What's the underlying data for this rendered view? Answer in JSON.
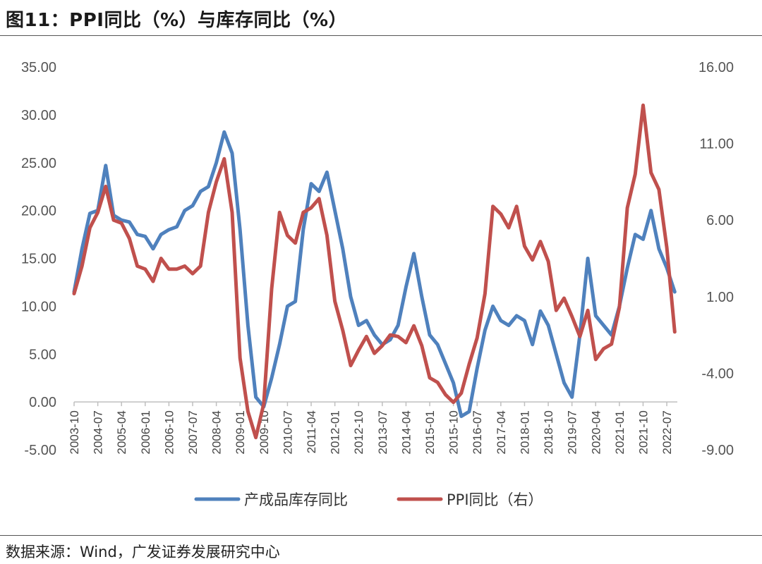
{
  "header": {
    "title": "图11：PPI同比（%）与库存同比（%）"
  },
  "footer": {
    "source": "数据来源：Wind，广发证券发展研究中心"
  },
  "chart_data": {
    "type": "line",
    "grid": false,
    "legend_position": "bottom",
    "y_left": {
      "min": -5,
      "max": 35,
      "ticks": [
        "35.00",
        "30.00",
        "25.00",
        "20.00",
        "15.00",
        "10.00",
        "5.00",
        "0.00",
        "-5.00"
      ]
    },
    "y_right": {
      "min": -9,
      "max": 16,
      "ticks": [
        "16.00",
        "11.00",
        "6.00",
        "1.00",
        "-4.00",
        "-9.00"
      ]
    },
    "x_ticks": [
      "2003-10",
      "2004-07",
      "2005-04",
      "2006-01",
      "2006-10",
      "2007-07",
      "2008-04",
      "2009-01",
      "2009-10",
      "2010-07",
      "2011-04",
      "2012-01",
      "2012-10",
      "2013-07",
      "2014-04",
      "2015-01",
      "2015-10",
      "2016-07",
      "2017-04",
      "2018-01",
      "2018-10",
      "2019-07",
      "2020-04",
      "2021-01",
      "2021-10",
      "2022-07"
    ],
    "series": [
      {
        "name": "产成品库存同比",
        "axis": "left",
        "color": "#4F81BD",
        "points": [
          [
            "2003-10",
            11.5
          ],
          [
            "2004-01",
            16
          ],
          [
            "2004-04",
            19.7
          ],
          [
            "2004-07",
            20
          ],
          [
            "2004-10",
            24.7
          ],
          [
            "2005-01",
            19.5
          ],
          [
            "2005-04",
            19
          ],
          [
            "2005-07",
            18.8
          ],
          [
            "2005-10",
            17.5
          ],
          [
            "2006-01",
            17.3
          ],
          [
            "2006-04",
            16
          ],
          [
            "2006-07",
            17.5
          ],
          [
            "2006-10",
            18
          ],
          [
            "2007-01",
            18.3
          ],
          [
            "2007-04",
            20
          ],
          [
            "2007-07",
            20.5
          ],
          [
            "2007-10",
            22
          ],
          [
            "2008-01",
            22.5
          ],
          [
            "2008-04",
            25
          ],
          [
            "2008-07",
            28.2
          ],
          [
            "2008-10",
            26
          ],
          [
            "2009-01",
            18
          ],
          [
            "2009-04",
            8
          ],
          [
            "2009-07",
            0.5
          ],
          [
            "2009-10",
            -0.5
          ],
          [
            "2010-01",
            2.5
          ],
          [
            "2010-04",
            6
          ],
          [
            "2010-07",
            10
          ],
          [
            "2010-10",
            10.5
          ],
          [
            "2011-01",
            18
          ],
          [
            "2011-04",
            22.8
          ],
          [
            "2011-07",
            22
          ],
          [
            "2011-10",
            24
          ],
          [
            "2012-01",
            20
          ],
          [
            "2012-04",
            16
          ],
          [
            "2012-07",
            11
          ],
          [
            "2012-10",
            8
          ],
          [
            "2013-01",
            8.5
          ],
          [
            "2013-04",
            7
          ],
          [
            "2013-07",
            6
          ],
          [
            "2013-10",
            6.5
          ],
          [
            "2014-01",
            8
          ],
          [
            "2014-04",
            12
          ],
          [
            "2014-07",
            15.5
          ],
          [
            "2014-10",
            11
          ],
          [
            "2015-01",
            7
          ],
          [
            "2015-04",
            6
          ],
          [
            "2015-07",
            4
          ],
          [
            "2015-10",
            2
          ],
          [
            "2016-01",
            -1.5
          ],
          [
            "2016-04",
            -1
          ],
          [
            "2016-07",
            3.5
          ],
          [
            "2016-10",
            7.5
          ],
          [
            "2017-01",
            10
          ],
          [
            "2017-04",
            8.5
          ],
          [
            "2017-07",
            8
          ],
          [
            "2017-10",
            9
          ],
          [
            "2018-01",
            8.5
          ],
          [
            "2018-04",
            6
          ],
          [
            "2018-07",
            9.5
          ],
          [
            "2018-10",
            8
          ],
          [
            "2019-01",
            5
          ],
          [
            "2019-04",
            2
          ],
          [
            "2019-07",
            0.5
          ],
          [
            "2019-10",
            7
          ],
          [
            "2020-01",
            15
          ],
          [
            "2020-04",
            9
          ],
          [
            "2020-07",
            8
          ],
          [
            "2020-10",
            7
          ],
          [
            "2021-01",
            10
          ],
          [
            "2021-04",
            14
          ],
          [
            "2021-07",
            17.5
          ],
          [
            "2021-10",
            17
          ],
          [
            "2022-01",
            20
          ],
          [
            "2022-04",
            16
          ],
          [
            "2022-07",
            14
          ],
          [
            "2022-10",
            11.5
          ]
        ]
      },
      {
        "name": "PPI同比（右）",
        "axis": "right",
        "color": "#C0504D",
        "points": [
          [
            "2003-10",
            1.2
          ],
          [
            "2004-01",
            3
          ],
          [
            "2004-04",
            5.5
          ],
          [
            "2004-07",
            6.5
          ],
          [
            "2004-10",
            8.2
          ],
          [
            "2005-01",
            6
          ],
          [
            "2005-04",
            5.8
          ],
          [
            "2005-07",
            4.8
          ],
          [
            "2005-10",
            3
          ],
          [
            "2006-01",
            2.8
          ],
          [
            "2006-04",
            2
          ],
          [
            "2006-07",
            3.5
          ],
          [
            "2006-10",
            2.8
          ],
          [
            "2007-01",
            2.8
          ],
          [
            "2007-04",
            3
          ],
          [
            "2007-07",
            2.5
          ],
          [
            "2007-10",
            3
          ],
          [
            "2008-01",
            6.5
          ],
          [
            "2008-04",
            8.5
          ],
          [
            "2008-07",
            10
          ],
          [
            "2008-10",
            6.5
          ],
          [
            "2009-01",
            -3
          ],
          [
            "2009-04",
            -6.5
          ],
          [
            "2009-07",
            -8.2
          ],
          [
            "2009-10",
            -6
          ],
          [
            "2010-01",
            1.5
          ],
          [
            "2010-04",
            6.5
          ],
          [
            "2010-07",
            5
          ],
          [
            "2010-10",
            4.5
          ],
          [
            "2011-01",
            6.5
          ],
          [
            "2011-04",
            6.8
          ],
          [
            "2011-07",
            7.4
          ],
          [
            "2011-10",
            5
          ],
          [
            "2012-01",
            0.7
          ],
          [
            "2012-04",
            -1.2
          ],
          [
            "2012-07",
            -3.5
          ],
          [
            "2012-10",
            -2.5
          ],
          [
            "2013-01",
            -1.6
          ],
          [
            "2013-04",
            -2.7
          ],
          [
            "2013-07",
            -2.2
          ],
          [
            "2013-10",
            -1.5
          ],
          [
            "2014-01",
            -1.6
          ],
          [
            "2014-04",
            -2
          ],
          [
            "2014-07",
            -0.9
          ],
          [
            "2014-10",
            -2.2
          ],
          [
            "2015-01",
            -4.3
          ],
          [
            "2015-04",
            -4.6
          ],
          [
            "2015-07",
            -5.4
          ],
          [
            "2015-10",
            -5.9
          ],
          [
            "2016-01",
            -5.3
          ],
          [
            "2016-04",
            -3.4
          ],
          [
            "2016-07",
            -1.7
          ],
          [
            "2016-10",
            1.2
          ],
          [
            "2017-01",
            6.9
          ],
          [
            "2017-04",
            6.4
          ],
          [
            "2017-07",
            5.5
          ],
          [
            "2017-10",
            6.9
          ],
          [
            "2018-01",
            4.3
          ],
          [
            "2018-04",
            3.4
          ],
          [
            "2018-07",
            4.6
          ],
          [
            "2018-10",
            3.3
          ],
          [
            "2019-01",
            0.1
          ],
          [
            "2019-04",
            0.9
          ],
          [
            "2019-07",
            -0.3
          ],
          [
            "2019-10",
            -1.6
          ],
          [
            "2020-01",
            0.1
          ],
          [
            "2020-04",
            -3.1
          ],
          [
            "2020-07",
            -2.4
          ],
          [
            "2020-10",
            -2.1
          ],
          [
            "2021-01",
            0.3
          ],
          [
            "2021-04",
            6.8
          ],
          [
            "2021-07",
            9
          ],
          [
            "2021-10",
            13.5
          ],
          [
            "2022-01",
            9.1
          ],
          [
            "2022-04",
            8
          ],
          [
            "2022-07",
            4.2
          ],
          [
            "2022-10",
            -1.3
          ]
        ]
      }
    ]
  }
}
